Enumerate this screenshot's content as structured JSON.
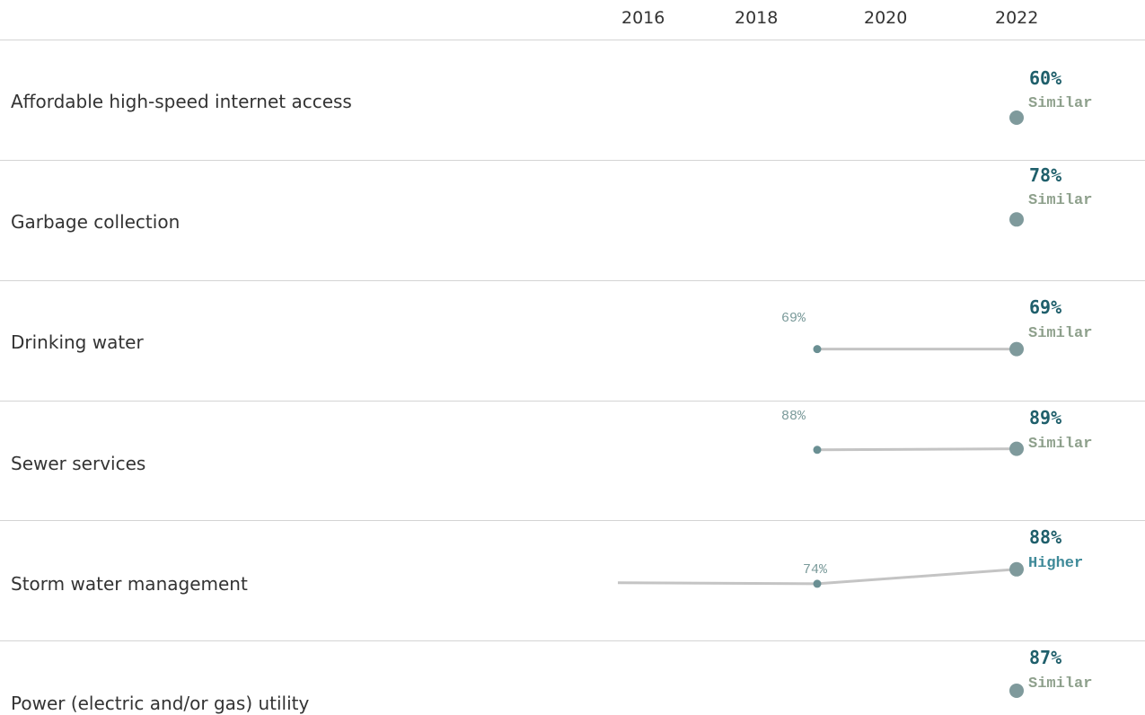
{
  "colors": {
    "dot": "#7f9a9c",
    "small_dot": "#6a8f93",
    "line": "#c4c4c4",
    "value_text": "#1f5f6b",
    "similar_text": "#8ea08c",
    "higher_text": "#3f8a99",
    "prior_text": "#7a9a9a",
    "divider": "#d4d4d4"
  },
  "chart_data": {
    "type": "line",
    "x_ticks": [
      "2016",
      "2018",
      "2020",
      "2022"
    ],
    "rows": [
      {
        "category": "Affordable high-speed internet access",
        "points": [
          {
            "year": 2022,
            "value": 60
          }
        ],
        "value_label": "60%",
        "status": "Similar",
        "prior_label": ""
      },
      {
        "category": "Garbage collection",
        "points": [
          {
            "year": 2022,
            "value": 78
          }
        ],
        "value_label": "78%",
        "status": "Similar",
        "prior_label": ""
      },
      {
        "category": "Drinking water",
        "points": [
          {
            "year": 2019,
            "value": 69
          },
          {
            "year": 2022,
            "value": 69
          }
        ],
        "value_label": "69%",
        "status": "Similar",
        "prior_label": "69%"
      },
      {
        "category": "Sewer services",
        "points": [
          {
            "year": 2019,
            "value": 88
          },
          {
            "year": 2022,
            "value": 89
          }
        ],
        "value_label": "89%",
        "status": "Similar",
        "prior_label": "88%"
      },
      {
        "category": "Storm water management",
        "points": [
          {
            "year": 2016,
            "value": 75
          },
          {
            "year": 2019,
            "value": 74
          },
          {
            "year": 2022,
            "value": 88
          }
        ],
        "value_label": "88%",
        "status": "Higher",
        "prior_label": "74%"
      },
      {
        "category": "Power (electric and/or gas) utility",
        "points": [
          {
            "year": 2022,
            "value": 87
          }
        ],
        "value_label": "87%",
        "status": "Similar",
        "prior_label": ""
      }
    ]
  }
}
